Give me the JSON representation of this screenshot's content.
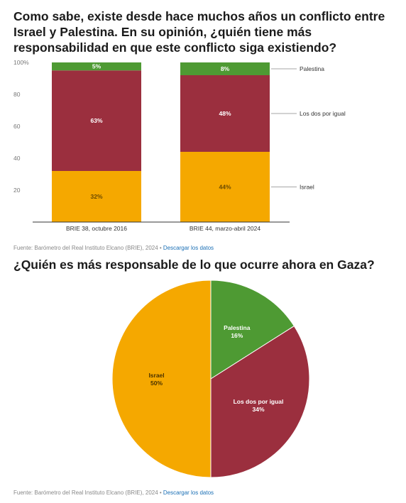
{
  "chart1": {
    "title": "Como sabe, existe desde hace muchos años un conflicto entre Israel y Palestina. En su opinión, ¿quién tiene más responsabilidad en que este conflicto siga existiendo?",
    "source_text": "Fuente: Barómetro del Real Instituto Elcano (BRIE), 2024 • ",
    "source_link": "Descargar los datos"
  },
  "chart2": {
    "title": "¿Quién es más responsable de lo que ocurre ahora en Gaza?",
    "source_text": "Fuente: Barómetro del Real Instituto Elcano (BRIE), 2024 • ",
    "source_link": "Descargar los datos"
  },
  "chart_data": [
    {
      "type": "bar",
      "stacked": true,
      "categories": [
        "BRIE 38, octubre 2016",
        "BRIE 44, marzo-abril 2024"
      ],
      "series": [
        {
          "name": "Israel",
          "values": [
            32,
            44
          ],
          "labels": [
            "32%",
            "44%"
          ],
          "color": "#f5a800"
        },
        {
          "name": "Los dos por igual",
          "values": [
            63,
            48
          ],
          "labels": [
            "63%",
            "48%"
          ],
          "color": "#9b2f3e"
        },
        {
          "name": "Palestina",
          "values": [
            5,
            8
          ],
          "labels": [
            "5%",
            "8%"
          ],
          "color": "#4e9a33"
        }
      ],
      "yticks": [
        "100%",
        "80",
        "60",
        "40",
        "20"
      ],
      "ylim": [
        0,
        100
      ],
      "grid": false,
      "legend": "right"
    },
    {
      "type": "pie",
      "slices": [
        {
          "name": "Palestina",
          "value": 16,
          "label": "16%",
          "color": "#4e9a33"
        },
        {
          "name": "Los dos por igual",
          "value": 34,
          "label": "34%",
          "color": "#9b2f3e"
        },
        {
          "name": "Israel",
          "value": 50,
          "label": "50%",
          "color": "#f5a800"
        }
      ]
    }
  ]
}
